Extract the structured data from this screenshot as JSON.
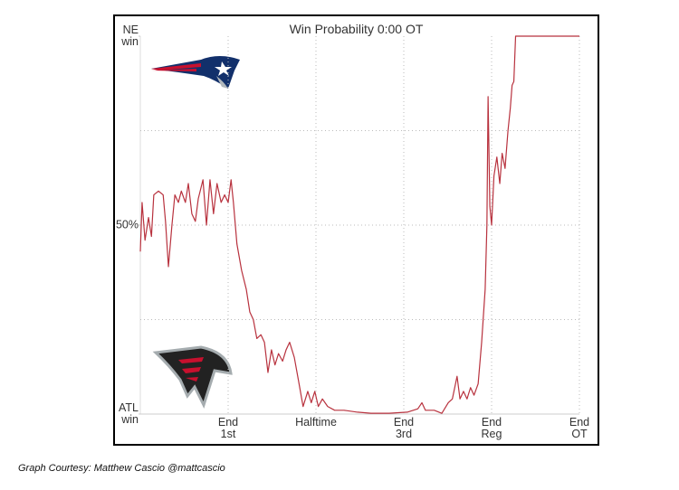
{
  "chart_data": {
    "type": "line",
    "title": "Win Probability 0:00 OT",
    "caption": "Graph Courtesy: Matthew Cascio @mattcascio",
    "series": [
      {
        "name": "NE win probability",
        "color": "#b8323e",
        "x": [
          0,
          0.3,
          0.8,
          1.4,
          1.9,
          2.3,
          3.1,
          3.9,
          4.3,
          4.8,
          5.4,
          5.9,
          6.5,
          7.0,
          7.7,
          8.2,
          8.8,
          9.4,
          9.9,
          10.7,
          11.3,
          11.9,
          12.5,
          13.1,
          13.8,
          14.4,
          15.0,
          15.5,
          15.9,
          16.5,
          17.3,
          18.1,
          18.7,
          19.3,
          19.9,
          20.6,
          21.2,
          21.8,
          22.4,
          23.0,
          23.6,
          24.3,
          24.9,
          25.5,
          26.3,
          27.0,
          27.8,
          28.6,
          29.2,
          29.8,
          30.4,
          31.1,
          32.0,
          33.2,
          34.8,
          37.1,
          39.4,
          42.5,
          45.6,
          47.4,
          48.1,
          48.7,
          50.2,
          51.5,
          52.6,
          53.3,
          54.1,
          54.6,
          55.2,
          55.8,
          56.4,
          57.0,
          57.7,
          58.3,
          58.9,
          59.2,
          59.4,
          59.7,
          60.0,
          60.4,
          60.9,
          61.4,
          61.8,
          62.3,
          62.8,
          63.2,
          63.5,
          63.8,
          64.1,
          75.0
        ],
        "values": [
          43,
          56,
          46,
          52,
          47,
          58,
          59,
          58,
          51,
          39,
          50,
          58,
          56,
          59,
          56,
          61,
          53,
          51,
          57,
          62,
          50,
          62,
          53,
          61,
          56,
          58,
          56,
          62,
          56,
          45,
          38,
          33,
          27,
          25,
          20,
          21,
          19,
          11,
          17,
          13,
          16,
          14,
          17,
          19,
          15,
          9,
          2,
          6,
          3,
          6,
          2,
          4,
          2,
          1,
          1,
          0.5,
          0.2,
          0.2,
          0.5,
          1.4,
          3,
          1,
          1,
          0.2,
          3,
          4,
          10,
          4,
          6,
          4,
          7,
          5,
          8,
          19,
          33,
          50,
          84,
          55,
          50,
          63,
          68,
          61,
          69,
          65,
          75,
          81,
          87,
          88,
          100,
          100
        ]
      }
    ],
    "xlim": [
      0,
      75
    ],
    "xticks": [
      {
        "value": 15,
        "label": "End 1st"
      },
      {
        "value": 30,
        "label": "Halftime"
      },
      {
        "value": 45,
        "label": "End 3rd"
      },
      {
        "value": 60,
        "label": "End Reg"
      },
      {
        "value": 75,
        "label": "End OT"
      }
    ],
    "ylim": [
      0,
      100
    ],
    "yticks": [
      {
        "value": 0,
        "label": "ATL win"
      },
      {
        "value": 50,
        "label": "50%"
      },
      {
        "value": 100,
        "label": "NE win"
      }
    ],
    "ygrid": [
      25,
      50,
      75
    ],
    "grid": true
  }
}
